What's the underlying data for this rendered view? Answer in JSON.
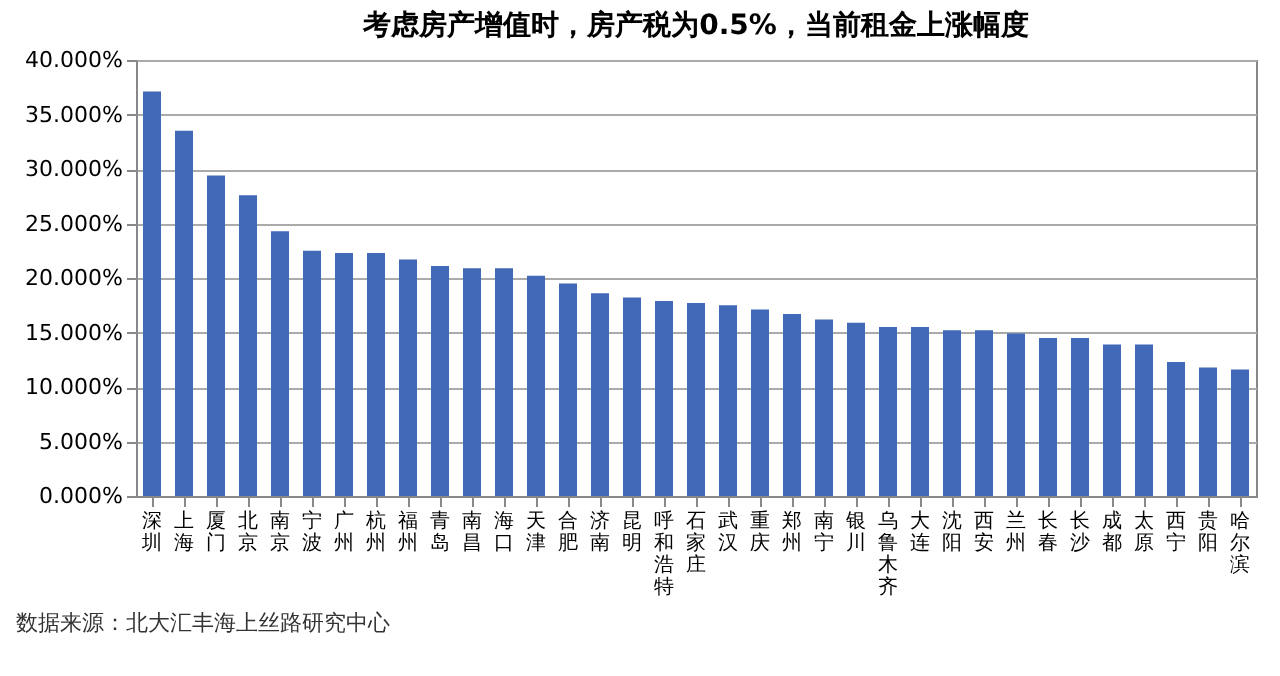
{
  "chart_data": {
    "type": "bar",
    "title": "考虑房产增值时，房产税为0.5%，当前租金上涨幅度",
    "categories": [
      "深圳",
      "上海",
      "厦门",
      "北京",
      "南京",
      "宁波",
      "广州",
      "杭州",
      "福州",
      "青岛",
      "南昌",
      "海口",
      "天津",
      "合肥",
      "济南",
      "昆明",
      "呼和浩特",
      "石家庄",
      "武汉",
      "重庆",
      "郑州",
      "南宁",
      "银川",
      "乌鲁木齐",
      "大连",
      "沈阳",
      "西安",
      "兰州",
      "长春",
      "长沙",
      "成都",
      "太原",
      "西宁",
      "贵阳",
      "哈尔滨"
    ],
    "values": [
      37.1,
      33.5,
      29.4,
      27.6,
      24.3,
      22.5,
      22.3,
      22.3,
      21.7,
      21.1,
      20.9,
      20.9,
      20.2,
      19.5,
      18.6,
      18.2,
      17.9,
      17.7,
      17.5,
      17.1,
      16.7,
      16.2,
      15.9,
      15.5,
      15.5,
      15.2,
      15.2,
      14.9,
      14.5,
      14.5,
      13.9,
      13.9,
      12.3,
      11.8,
      11.6
    ],
    "color": "#4169b8",
    "ylim": [
      0,
      40
    ],
    "yticks": [
      {
        "value": 0,
        "label": "0.000%"
      },
      {
        "value": 5,
        "label": "5.000%"
      },
      {
        "value": 10,
        "label": "10.000%"
      },
      {
        "value": 15,
        "label": "15.000%"
      },
      {
        "value": 20,
        "label": "20.000%"
      },
      {
        "value": 25,
        "label": "25.000%"
      },
      {
        "value": 30,
        "label": "30.000%"
      },
      {
        "value": 35,
        "label": "35.000%"
      },
      {
        "value": 40,
        "label": "40.000%"
      }
    ],
    "grid": "y",
    "annotations": [
      "数据来源：北大汇丰海上丝路研究中心"
    ]
  }
}
